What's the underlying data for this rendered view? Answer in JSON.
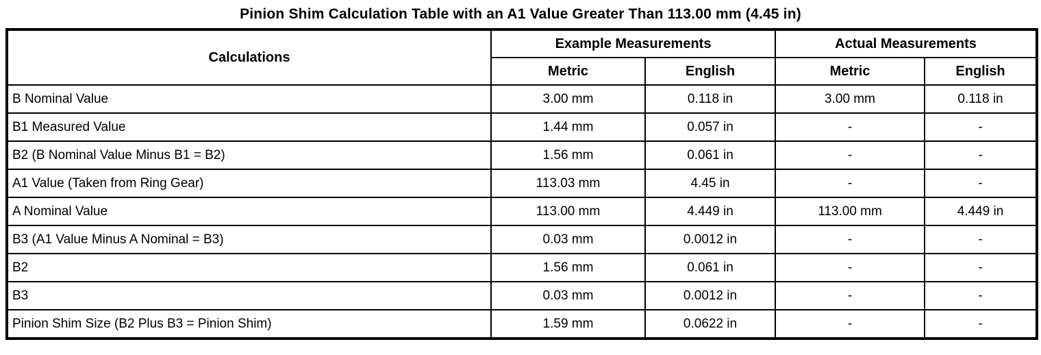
{
  "title": "Pinion Shim Calculation Table with an A1 Value Greater Than 113.00 mm (4.45 in)",
  "table": {
    "header": {
      "calculations": "Calculations",
      "example_group": "Example Measurements",
      "actual_group": "Actual Measurements",
      "metric": "Metric",
      "english": "English"
    },
    "rows": [
      {
        "label": "B Nominal Value",
        "cells": [
          "3.00 mm",
          "0.118 in",
          "3.00 mm",
          "0.118 in"
        ]
      },
      {
        "label": "B1 Measured Value",
        "cells": [
          "1.44 mm",
          "0.057 in",
          "-",
          "-"
        ]
      },
      {
        "label": "B2 (B Nominal Value Minus B1 = B2)",
        "cells": [
          "1.56 mm",
          "0.061 in",
          "-",
          "-"
        ]
      },
      {
        "label": "A1 Value (Taken from Ring Gear)",
        "cells": [
          "113.03 mm",
          "4.45 in",
          "-",
          "-"
        ]
      },
      {
        "label": "A Nominal Value",
        "cells": [
          "113.00 mm",
          "4.449 in",
          "113.00 mm",
          "4.449 in"
        ]
      },
      {
        "label": "B3 (A1 Value Minus A Nominal = B3)",
        "cells": [
          "0.03 mm",
          "0.0012 in",
          "-",
          "-"
        ]
      },
      {
        "label": "B2",
        "cells": [
          "1.56 mm",
          "0.061 in",
          "-",
          "-"
        ]
      },
      {
        "label": "B3",
        "cells": [
          "0.03 mm",
          "0.0012 in",
          "-",
          "-"
        ]
      },
      {
        "label": "Pinion Shim Size (B2 Plus B3 = Pinion Shim)",
        "cells": [
          "1.59 mm",
          "0.0622 in",
          "-",
          "-"
        ]
      }
    ]
  }
}
